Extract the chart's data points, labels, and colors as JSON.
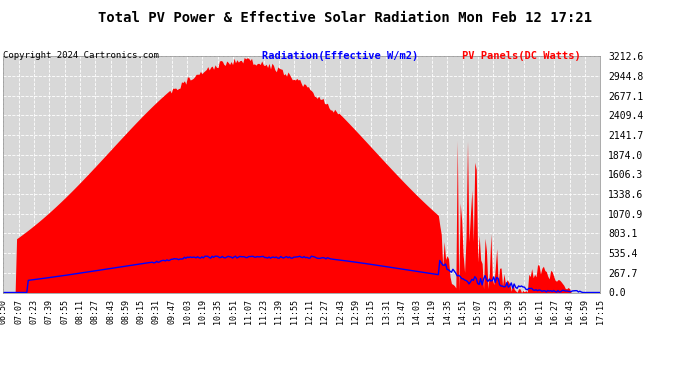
{
  "title": "Total PV Power & Effective Solar Radiation Mon Feb 12 17:21",
  "copyright": "Copyright 2024 Cartronics.com",
  "legend_radiation": "Radiation(Effective W/m2)",
  "legend_pv": "PV Panels(DC Watts)",
  "bg_color": "#d8d8d8",
  "fig_color": "#ffffff",
  "grid_color": "#ffffff",
  "radiation_color": "#0000ff",
  "pv_color": "#ff0000",
  "ymax": 3212.6,
  "ymin": 0.0,
  "yticks": [
    0.0,
    267.7,
    535.4,
    803.1,
    1070.9,
    1338.6,
    1606.3,
    1874.0,
    2141.7,
    2409.4,
    2677.1,
    2944.8,
    3212.6
  ],
  "xtick_labels": [
    "06:50",
    "07:07",
    "07:23",
    "07:39",
    "07:55",
    "08:11",
    "08:27",
    "08:43",
    "08:59",
    "09:15",
    "09:31",
    "09:47",
    "10:03",
    "10:19",
    "10:35",
    "10:51",
    "11:07",
    "11:23",
    "11:39",
    "11:55",
    "12:11",
    "12:27",
    "12:43",
    "12:59",
    "13:15",
    "13:31",
    "13:47",
    "14:03",
    "14:19",
    "14:35",
    "14:51",
    "15:07",
    "15:23",
    "15:39",
    "15:55",
    "16:11",
    "16:27",
    "16:43",
    "16:59",
    "17:15"
  ]
}
